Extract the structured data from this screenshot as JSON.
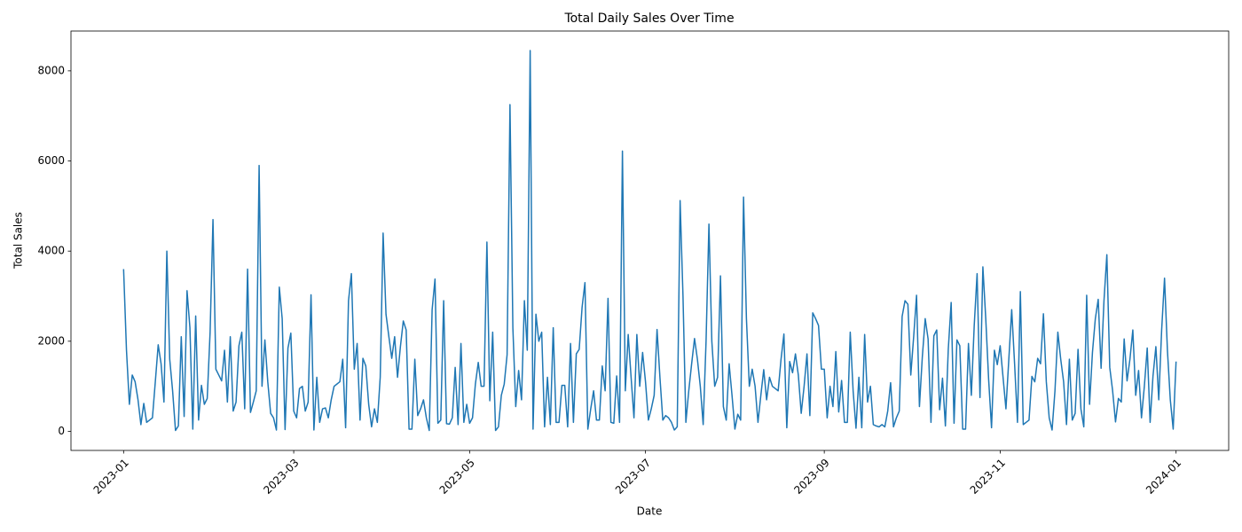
{
  "chart_data": {
    "type": "line",
    "title": "Total Daily Sales Over Time",
    "x_label": "Date",
    "y_label": "Total Sales",
    "x": [
      0,
      1,
      2,
      3,
      4,
      5,
      6,
      7,
      8,
      9,
      10,
      11,
      12,
      13,
      14,
      15,
      16,
      17,
      18,
      19,
      20,
      21,
      22,
      23,
      24,
      25,
      26,
      27,
      28,
      29,
      30,
      31,
      32,
      33,
      34,
      35,
      36,
      37,
      38,
      39,
      40,
      41,
      42,
      43,
      44,
      45,
      46,
      47,
      48,
      49,
      50,
      51,
      52,
      53,
      54,
      55,
      56,
      57,
      58,
      59,
      60,
      61,
      62,
      63,
      64,
      65,
      66,
      67,
      68,
      69,
      70,
      71,
      72,
      73,
      74,
      75,
      76,
      77,
      78,
      79,
      80,
      81,
      82,
      83,
      84,
      85,
      86,
      87,
      88,
      89,
      90,
      91,
      92,
      93,
      94,
      95,
      96,
      97,
      98,
      99,
      100,
      101,
      102,
      103,
      104,
      105,
      106,
      107,
      108,
      109,
      110,
      111,
      112,
      113,
      114,
      115,
      116,
      117,
      118,
      119,
      120,
      121,
      122,
      123,
      124,
      125,
      126,
      127,
      128,
      129,
      130,
      131,
      132,
      133,
      134,
      135,
      136,
      137,
      138,
      139,
      140,
      141,
      142,
      143,
      144,
      145,
      146,
      147,
      148,
      149,
      150,
      151,
      152,
      153,
      154,
      155,
      156,
      157,
      158,
      159,
      160,
      161,
      162,
      163,
      164,
      165,
      166,
      167,
      168,
      169,
      170,
      171,
      172,
      173,
      174,
      175,
      176,
      177,
      178,
      179,
      180,
      181,
      182,
      183,
      184,
      185,
      186,
      187,
      188,
      189,
      190,
      191,
      192,
      193,
      194,
      195,
      196,
      197,
      198,
      199,
      200,
      201,
      202,
      203,
      204,
      205,
      206,
      207,
      208,
      209,
      210,
      211,
      212,
      213,
      214,
      215,
      216,
      217,
      218,
      219,
      220,
      221,
      222,
      223,
      224,
      225,
      226,
      227,
      228,
      229,
      230,
      231,
      232,
      233,
      234,
      235,
      236,
      237,
      238,
      239,
      240,
      241,
      242,
      243,
      244,
      245,
      246,
      247,
      248,
      249,
      250,
      251,
      252,
      253,
      254,
      255,
      256,
      257,
      258,
      259,
      260,
      261,
      262,
      263,
      264,
      265,
      266,
      267,
      268,
      269,
      270,
      271,
      272,
      273,
      274,
      275,
      276,
      277,
      278,
      279,
      280,
      281,
      282,
      283,
      284,
      285,
      286,
      287,
      288,
      289,
      290,
      291,
      292,
      293,
      294,
      295,
      296,
      297,
      298,
      299,
      300,
      301,
      302,
      303,
      304,
      305,
      306,
      307,
      308,
      309,
      310,
      311,
      312,
      313,
      314,
      315,
      316,
      317,
      318,
      319,
      320,
      321,
      322,
      323,
      324,
      325,
      326,
      327,
      328,
      329,
      330,
      331,
      332,
      333,
      334,
      335,
      336,
      337,
      338,
      339,
      340,
      341,
      342,
      343,
      344,
      345,
      346,
      347,
      348,
      349,
      350,
      351,
      352,
      353,
      354,
      355,
      356,
      357,
      358,
      359,
      360,
      361,
      362,
      363,
      364,
      365
    ],
    "values": [
      3600,
      1800,
      600,
      1250,
      1100,
      700,
      150,
      620,
      200,
      250,
      300,
      1100,
      1920,
      1500,
      650,
      4000,
      1600,
      900,
      20,
      120,
      2100,
      330,
      3120,
      2300,
      50,
      2560,
      250,
      1020,
      600,
      730,
      2200,
      4700,
      1380,
      1250,
      1120,
      1800,
      650,
      2100,
      450,
      650,
      1900,
      2200,
      500,
      3600,
      420,
      650,
      900,
      5900,
      1000,
      2030,
      1100,
      400,
      300,
      30,
      3200,
      2500,
      40,
      1850,
      2180,
      450,
      300,
      950,
      1000,
      450,
      650,
      3030,
      30,
      1200,
      200,
      500,
      520,
      300,
      700,
      1000,
      1050,
      1100,
      1600,
      80,
      2900,
      3500,
      1380,
      1950,
      250,
      1620,
      1450,
      600,
      100,
      500,
      200,
      1200,
      4400,
      2600,
      2100,
      1620,
      2100,
      1200,
      1880,
      2450,
      2250,
      50,
      50,
      1600,
      350,
      500,
      700,
      300,
      20,
      2700,
      3380,
      180,
      250,
      2900,
      170,
      160,
      300,
      1420,
      150,
      1950,
      200,
      600,
      180,
      300,
      1050,
      1530,
      1000,
      1000,
      4200,
      680,
      2200,
      20,
      100,
      800,
      1050,
      1700,
      7250,
      2300,
      550,
      1350,
      700,
      2900,
      1800,
      8450,
      50,
      2600,
      2000,
      2200,
      100,
      1200,
      150,
      2300,
      200,
      200,
      1020,
      1020,
      100,
      1950,
      200,
      1720,
      1820,
      2750,
      3300,
      50,
      500,
      900,
      250,
      250,
      1450,
      900,
      2950,
      200,
      180,
      1230,
      200,
      6220,
      900,
      2150,
      1200,
      300,
      2150,
      1000,
      1750,
      1100,
      250,
      500,
      800,
      2260,
      1200,
      250,
      350,
      300,
      200,
      30,
      100,
      5120,
      3000,
      200,
      900,
      1500,
      2060,
      1600,
      1000,
      150,
      2000,
      4600,
      2000,
      1000,
      1200,
      3450,
      550,
      250,
      1500,
      800,
      50,
      380,
      250,
      5200,
      2500,
      1000,
      1380,
      1000,
      200,
      800,
      1370,
      700,
      1200,
      1000,
      950,
      900,
      1600,
      2160,
      80,
      1550,
      1300,
      1720,
      1250,
      400,
      1000,
      1720,
      350,
      2630,
      2500,
      2350,
      1380,
      1380,
      300,
      1000,
      550,
      1770,
      430,
      1130,
      200,
      200,
      2200,
      900,
      70,
      1200,
      80,
      2150,
      650,
      1000,
      150,
      120,
      100,
      150,
      100,
      450,
      1080,
      100,
      300,
      450,
      2550,
      2900,
      2820,
      1250,
      2100,
      3020,
      550,
      1650,
      2500,
      2050,
      200,
      2120,
      2250,
      480,
      1180,
      120,
      1820,
      2860,
      180,
      2030,
      1900,
      50,
      50,
      1950,
      800,
      2350,
      3500,
      750,
      3650,
      2500,
      1150,
      80,
      1800,
      1480,
      1900,
      1200,
      500,
      1600,
      2700,
      1500,
      200,
      3100,
      150,
      200,
      250,
      1220,
      1100,
      1620,
      1500,
      2610,
      1100,
      300,
      30,
      900,
      2200,
      1600,
      1100,
      150,
      1600,
      250,
      400,
      1820,
      500,
      100,
      3020,
      600,
      1750,
      2500,
      2930,
      1400,
      2900,
      3920,
      1420,
      900,
      210,
      730,
      650,
      2050,
      1120,
      1600,
      2250,
      800,
      1350,
      300,
      1000,
      1850,
      200,
      1230,
      1880,
      700,
      2250,
      3400,
      1800,
      700,
      50,
      1550
    ],
    "color": "#1f77b4",
    "xlim": [
      -18.25,
      383.25
    ],
    "xticks": [
      {
        "value": 0,
        "label": "2023-01"
      },
      {
        "value": 59,
        "label": "2023-03"
      },
      {
        "value": 120,
        "label": "2023-05"
      },
      {
        "value": 181,
        "label": "2023-07"
      },
      {
        "value": 243,
        "label": "2023-09"
      },
      {
        "value": 304,
        "label": "2023-11"
      },
      {
        "value": 365,
        "label": "2024-01"
      }
    ],
    "ylim": [
      -423,
      8883
    ],
    "yticks": [
      0,
      2000,
      4000,
      6000,
      8000
    ],
    "grid": false
  }
}
